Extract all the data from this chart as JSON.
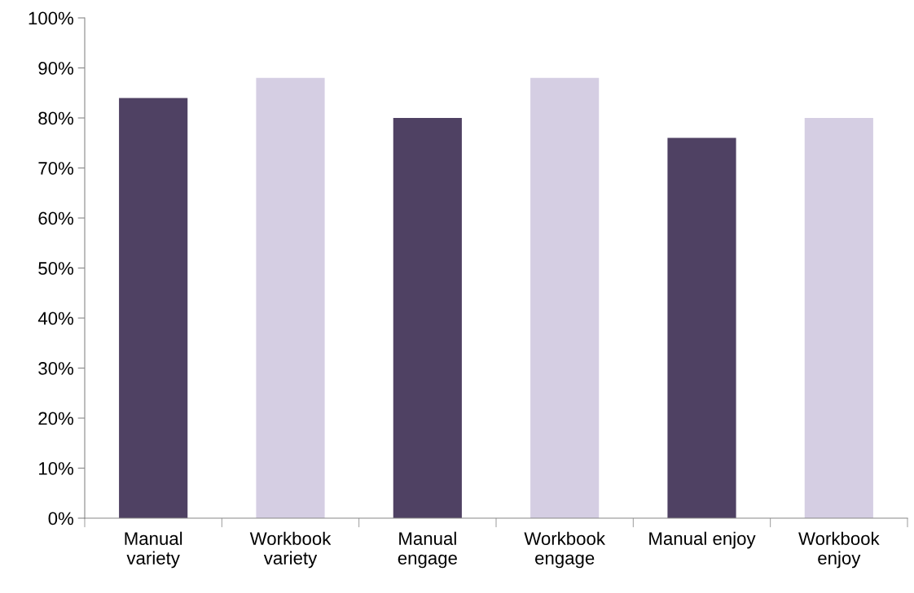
{
  "chart_data": {
    "type": "bar",
    "categories": [
      "Manual\nvariety",
      "Workbook\nvariety",
      "Manual\nengage",
      "Workbook\nengage",
      "Manual enjoy",
      "Workbook\nenjoy"
    ],
    "values": [
      84,
      88,
      80,
      88,
      76,
      80
    ],
    "colors": [
      "#4f4163",
      "#d5cee3",
      "#4f4163",
      "#d5cee3",
      "#4f4163",
      "#d5cee3"
    ],
    "ylim": [
      0,
      100
    ],
    "yticks": [
      {
        "value": 0,
        "label": "0%"
      },
      {
        "value": 10,
        "label": "10%"
      },
      {
        "value": 20,
        "label": "20%"
      },
      {
        "value": 30,
        "label": "30%"
      },
      {
        "value": 40,
        "label": "40%"
      },
      {
        "value": 50,
        "label": "50%"
      },
      {
        "value": 60,
        "label": "60%"
      },
      {
        "value": 70,
        "label": "70%"
      },
      {
        "value": 80,
        "label": "80%"
      },
      {
        "value": 90,
        "label": "90%"
      },
      {
        "value": 100,
        "label": "100%"
      }
    ],
    "grid": false
  }
}
